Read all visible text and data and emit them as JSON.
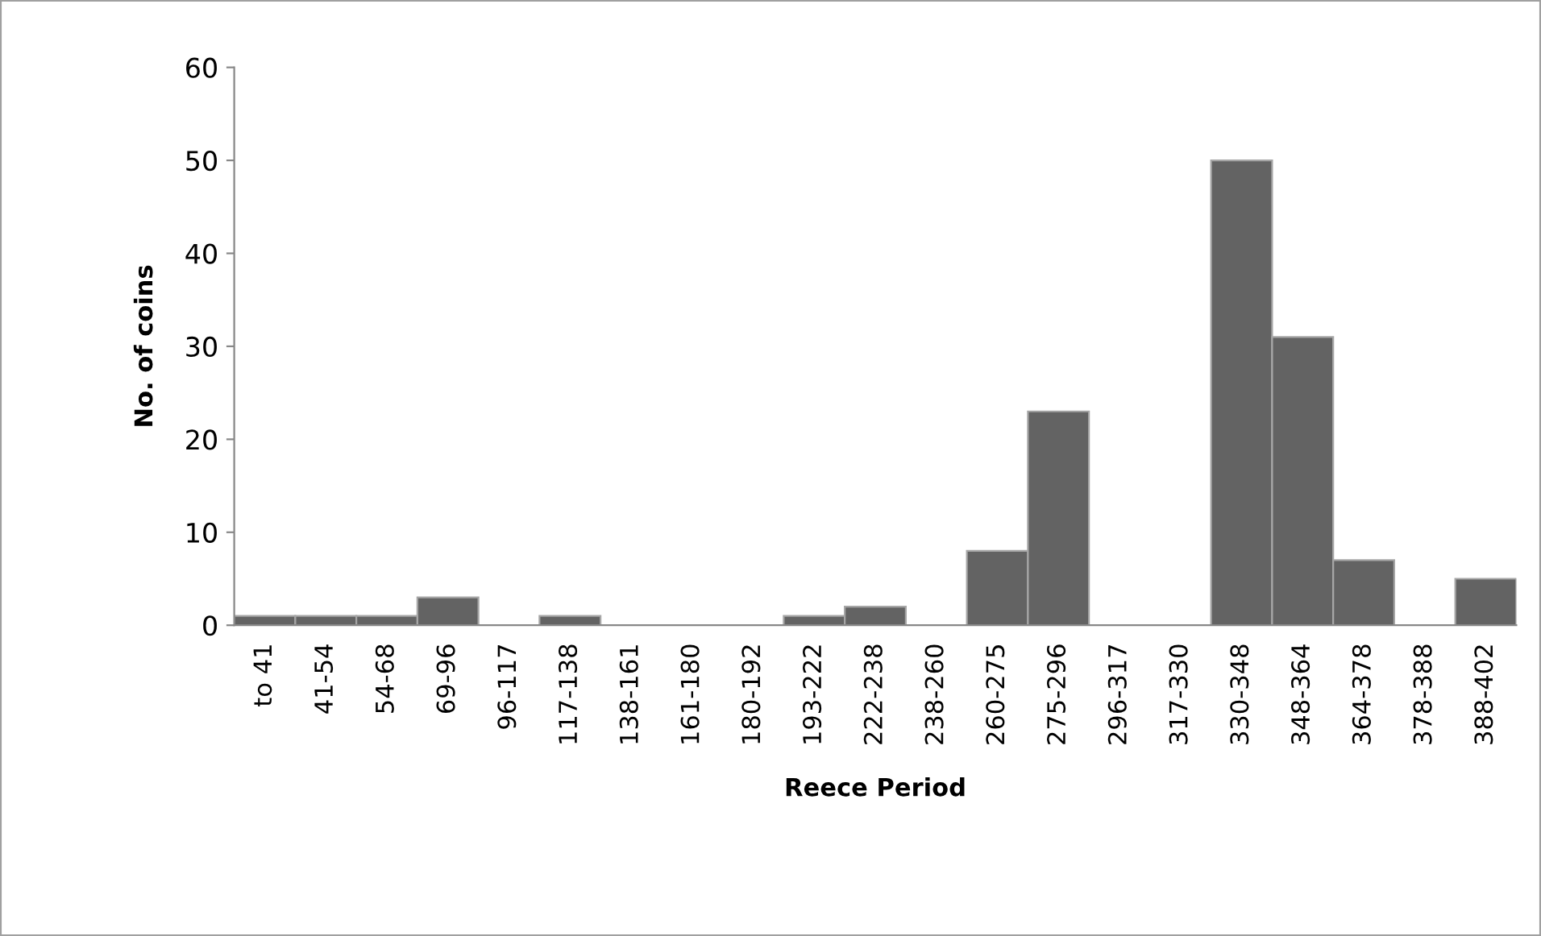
{
  "chart_data": {
    "type": "bar",
    "xlabel": "Reece Period",
    "ylabel": "No. of coins",
    "categories": [
      "to 41",
      "41-54",
      "54-68",
      "69-96",
      "96-117",
      "117-138",
      "138-161",
      "161-180",
      "180-192",
      "193-222",
      "222-238",
      "238-260",
      "260-275",
      "275-296",
      "296-317",
      "317-330",
      "330-348",
      "348-364",
      "364-378",
      "378-388",
      "388-402"
    ],
    "values": [
      1,
      1,
      1,
      3,
      0,
      1,
      0,
      0,
      0,
      1,
      2,
      0,
      8,
      23,
      0,
      0,
      50,
      31,
      7,
      0,
      5
    ],
    "color": "#636363",
    "ylim": [
      0,
      60
    ],
    "yticks": [
      0,
      10,
      20,
      30,
      40,
      50,
      60
    ],
    "grid": false,
    "legend": false
  }
}
